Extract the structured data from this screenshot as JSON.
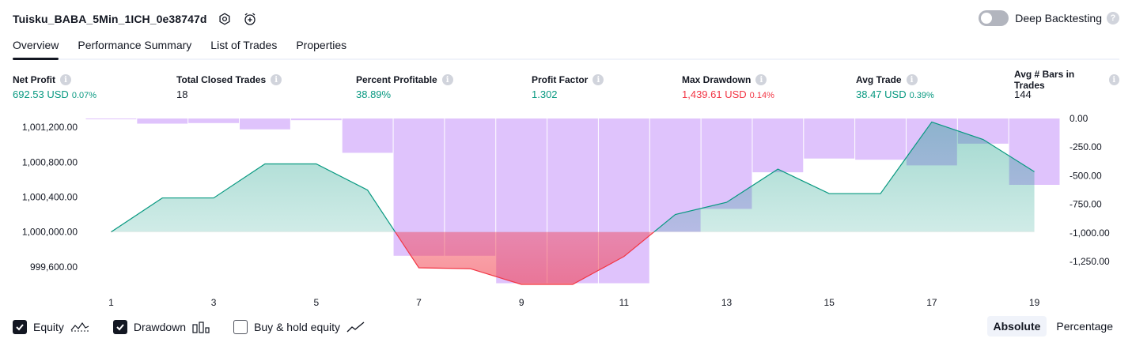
{
  "header": {
    "title": "Tuisku_BABA_5Min_1ICH_0e38747d",
    "settings_icon": "gear-icon",
    "alert_icon": "alarm-clock-plus-icon"
  },
  "deep_backtesting": {
    "label": "Deep Backtesting",
    "enabled": false,
    "help": "?"
  },
  "tabs": [
    {
      "label": "Overview",
      "active": true
    },
    {
      "label": "Performance Summary",
      "active": false
    },
    {
      "label": "List of Trades",
      "active": false
    },
    {
      "label": "Properties",
      "active": false
    }
  ],
  "metrics": [
    {
      "label": "Net Profit",
      "value": "692.53 USD",
      "pct": "0.07%",
      "color": "green"
    },
    {
      "label": "Total Closed Trades",
      "value": "18",
      "pct": "",
      "color": "dark"
    },
    {
      "label": "Percent Profitable",
      "value": "38.89%",
      "pct": "",
      "color": "green"
    },
    {
      "label": "Profit Factor",
      "value": "1.302",
      "pct": "",
      "color": "green"
    },
    {
      "label": "Max Drawdown",
      "value": "1,439.61 USD",
      "pct": "0.14%",
      "color": "red"
    },
    {
      "label": "Avg Trade",
      "value": "38.47 USD",
      "pct": "0.39%",
      "color": "green"
    },
    {
      "label": "Avg # Bars in Trades",
      "value": "144",
      "pct": "",
      "color": "dark"
    }
  ],
  "chart_data": {
    "type": "line",
    "x": [
      1,
      2,
      3,
      4,
      5,
      6,
      7,
      8,
      9,
      10,
      11,
      12,
      13,
      14,
      15,
      16,
      17,
      18,
      19
    ],
    "x_tick_labels": [
      "1",
      "3",
      "5",
      "7",
      "9",
      "11",
      "13",
      "15",
      "17",
      "19"
    ],
    "left_axis": {
      "ylim": [
        999400,
        1001300
      ],
      "tick_labels": [
        "1,001,200.00",
        "1,000,800.00",
        "1,000,400.00",
        "1,000,000.00",
        "999,600.00"
      ],
      "tick_values": [
        1001200,
        1000800,
        1000400,
        1000000,
        999600
      ]
    },
    "right_axis": {
      "ylim": [
        -1450,
        0
      ],
      "tick_labels": [
        "0.00",
        "-250.00",
        "-500.00",
        "-750.00",
        "-1,000.00",
        "-1,250.00"
      ],
      "tick_values": [
        0,
        -250,
        -500,
        -750,
        -1000,
        -1250
      ]
    },
    "baseline": 1000000,
    "series": [
      {
        "name": "Equity",
        "type": "area",
        "axis": "left",
        "values": [
          1000000,
          1000390,
          1000390,
          1000780,
          1000780,
          1000480,
          999590,
          999580,
          999400,
          999400,
          999720,
          1000200,
          1000340,
          1000720,
          1000440,
          1000440,
          1001260,
          1001060,
          1000690
        ],
        "color_up": "#089981",
        "color_down": "#f23645"
      },
      {
        "name": "Drawdown",
        "type": "bar",
        "axis": "right",
        "values": [
          -5,
          -45,
          -40,
          -95,
          -15,
          -300,
          -1200,
          -1200,
          -1440,
          -1440,
          -1440,
          -990,
          -790,
          -470,
          -350,
          -360,
          -410,
          -220,
          -580
        ],
        "color": "#dcbcfc"
      }
    ],
    "grid": false
  },
  "legend": [
    {
      "label": "Equity",
      "checked": true,
      "glyph": "equity-line-icon"
    },
    {
      "label": "Drawdown",
      "checked": true,
      "glyph": "drawdown-bars-icon"
    },
    {
      "label": "Buy & hold equity",
      "checked": false,
      "glyph": "buy-hold-line-icon"
    }
  ],
  "mode": {
    "absolute": "Absolute",
    "percentage": "Percentage",
    "active": "absolute"
  }
}
